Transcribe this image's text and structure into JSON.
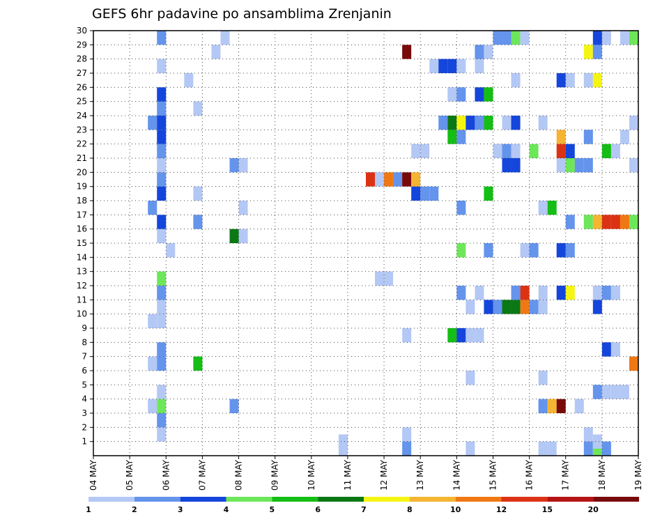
{
  "chart_data": {
    "type": "heatmap",
    "title": "GEFS 6hr padavine po ansamblima Zrenjanin",
    "xlabel": "",
    "ylabel": "",
    "x_ticks": [
      "04 MAY",
      "05 MAY",
      "06 MAY",
      "07 MAY",
      "08 MAY",
      "09 MAY",
      "10 MAY",
      "11 MAY",
      "12 MAY",
      "13 MAY",
      "14 MAY",
      "15 MAY",
      "16 MAY",
      "17 MAY",
      "18 MAY",
      "19 MAY"
    ],
    "y_ticks": [
      1,
      2,
      3,
      4,
      5,
      6,
      7,
      8,
      9,
      10,
      11,
      12,
      13,
      14,
      15,
      16,
      17,
      18,
      19,
      20,
      21,
      22,
      23,
      24,
      25,
      26,
      27,
      28,
      29,
      30
    ],
    "xlim_days": [
      0,
      15
    ],
    "ylim": [
      0,
      30
    ],
    "time_step_hours": 6,
    "grid": true,
    "color_levels": {
      "labels": [
        "1",
        "2",
        "3",
        "4",
        "5",
        "6",
        "7",
        "8",
        "10",
        "12",
        "15",
        "20"
      ],
      "colors": [
        "#b4c8f5",
        "#6494ec",
        "#1446dc",
        "#6ee65a",
        "#14be14",
        "#0a7814",
        "#f5f514",
        "#f5b432",
        "#f07814",
        "#dc3214",
        "#b41414",
        "#780a0a"
      ]
    },
    "cells": [
      [
        6.75,
        0,
        1
      ],
      [
        8.5,
        0,
        2
      ],
      [
        10.25,
        0,
        1
      ],
      [
        12.25,
        0,
        1
      ],
      [
        12.5,
        0,
        1
      ],
      [
        13.5,
        0,
        2
      ],
      [
        13.75,
        0,
        4
      ],
      [
        14.0,
        0,
        2
      ],
      [
        6.75,
        0.5,
        1
      ],
      [
        13.75,
        0.5,
        1
      ],
      [
        1.75,
        1,
        1
      ],
      [
        8.5,
        1,
        1
      ],
      [
        13.5,
        1,
        1
      ],
      [
        1.75,
        2,
        2
      ],
      [
        1.5,
        3,
        1
      ],
      [
        1.75,
        3,
        4
      ],
      [
        3.75,
        3,
        2
      ],
      [
        12.25,
        3,
        2
      ],
      [
        12.5,
        3,
        8
      ],
      [
        12.75,
        3,
        12
      ],
      [
        13.25,
        3,
        1
      ],
      [
        1.75,
        4,
        1
      ],
      [
        13.75,
        4,
        2
      ],
      [
        14.0,
        4,
        1
      ],
      [
        14.25,
        4,
        1
      ],
      [
        14.5,
        4,
        1
      ],
      [
        10.25,
        5,
        1
      ],
      [
        12.25,
        5,
        1
      ],
      [
        1.5,
        6,
        1
      ],
      [
        1.75,
        6,
        2
      ],
      [
        2.75,
        6,
        5
      ],
      [
        14.75,
        6,
        9
      ],
      [
        15.0,
        6,
        11
      ],
      [
        1.75,
        7,
        2
      ],
      [
        14.0,
        7,
        3
      ],
      [
        14.25,
        7,
        1
      ],
      [
        8.5,
        8,
        1
      ],
      [
        9.75,
        8,
        5
      ],
      [
        10.0,
        8,
        3
      ],
      [
        10.25,
        8,
        1
      ],
      [
        10.5,
        8,
        1
      ],
      [
        1.5,
        9,
        1
      ],
      [
        1.75,
        9,
        1
      ],
      [
        1.75,
        10,
        1
      ],
      [
        10.25,
        10,
        1
      ],
      [
        10.75,
        10,
        3
      ],
      [
        11.0,
        10,
        2
      ],
      [
        11.25,
        10,
        6
      ],
      [
        11.5,
        10,
        6
      ],
      [
        11.75,
        10,
        9
      ],
      [
        12.0,
        10,
        2
      ],
      [
        12.25,
        10,
        1
      ],
      [
        13.75,
        10,
        3
      ],
      [
        1.75,
        11,
        2
      ],
      [
        10.0,
        11,
        2
      ],
      [
        10.5,
        11,
        1
      ],
      [
        11.5,
        11,
        2
      ],
      [
        11.75,
        11,
        10
      ],
      [
        12.25,
        11,
        1
      ],
      [
        12.75,
        11,
        3
      ],
      [
        13.0,
        11,
        7
      ],
      [
        13.75,
        11,
        1
      ],
      [
        14.0,
        11,
        2
      ],
      [
        14.25,
        11,
        1
      ],
      [
        1.75,
        12,
        4
      ],
      [
        7.75,
        12,
        1
      ],
      [
        8.0,
        12,
        1
      ],
      [
        2.0,
        14,
        1
      ],
      [
        10.0,
        14,
        4
      ],
      [
        10.75,
        14,
        2
      ],
      [
        11.75,
        14,
        1
      ],
      [
        12.0,
        14,
        2
      ],
      [
        12.75,
        14,
        3
      ],
      [
        13.0,
        14,
        2
      ],
      [
        15.0,
        14,
        1
      ],
      [
        1.75,
        15,
        1
      ],
      [
        3.75,
        15,
        6
      ],
      [
        4.0,
        15,
        1
      ],
      [
        1.75,
        16,
        3
      ],
      [
        2.75,
        16,
        2
      ],
      [
        13.0,
        16,
        2
      ],
      [
        13.5,
        16,
        4
      ],
      [
        13.75,
        16,
        8
      ],
      [
        14.0,
        16,
        10
      ],
      [
        14.25,
        16,
        10
      ],
      [
        14.5,
        16,
        9
      ],
      [
        14.75,
        16,
        4
      ],
      [
        15.0,
        16,
        1
      ],
      [
        1.5,
        17,
        2
      ],
      [
        4.0,
        17,
        1
      ],
      [
        10.0,
        17,
        2
      ],
      [
        12.25,
        17,
        1
      ],
      [
        12.5,
        17,
        5
      ],
      [
        15.0,
        17,
        5
      ],
      [
        1.75,
        18,
        3
      ],
      [
        2.75,
        18,
        1
      ],
      [
        8.75,
        18,
        3
      ],
      [
        9.0,
        18,
        2
      ],
      [
        9.25,
        18,
        2
      ],
      [
        10.75,
        18,
        5
      ],
      [
        1.75,
        19,
        2
      ],
      [
        7.5,
        19,
        10
      ],
      [
        7.75,
        19,
        1
      ],
      [
        8.0,
        19,
        9
      ],
      [
        8.25,
        19,
        2
      ],
      [
        8.5,
        19,
        12
      ],
      [
        8.75,
        19,
        8
      ],
      [
        1.75,
        20,
        1
      ],
      [
        3.75,
        20,
        2
      ],
      [
        4.0,
        20,
        1
      ],
      [
        11.25,
        20,
        3
      ],
      [
        11.5,
        20,
        3
      ],
      [
        12.75,
        20,
        1
      ],
      [
        13.0,
        20,
        4
      ],
      [
        13.25,
        20,
        2
      ],
      [
        13.5,
        20,
        2
      ],
      [
        14.75,
        20,
        1
      ],
      [
        1.75,
        21,
        2
      ],
      [
        8.75,
        21,
        1
      ],
      [
        9.0,
        21,
        1
      ],
      [
        11.0,
        21,
        1
      ],
      [
        11.25,
        21,
        2
      ],
      [
        11.5,
        21,
        1
      ],
      [
        12.0,
        21,
        4
      ],
      [
        12.75,
        21,
        10
      ],
      [
        13.0,
        21,
        3
      ],
      [
        14.0,
        21,
        5
      ],
      [
        14.25,
        21,
        1
      ],
      [
        1.75,
        22,
        3
      ],
      [
        9.75,
        22,
        5
      ],
      [
        10.0,
        22,
        2
      ],
      [
        12.75,
        22,
        8
      ],
      [
        13.5,
        22,
        2
      ],
      [
        14.5,
        22,
        1
      ],
      [
        1.5,
        23,
        2
      ],
      [
        1.75,
        23,
        3
      ],
      [
        9.5,
        23,
        2
      ],
      [
        9.75,
        23,
        6
      ],
      [
        10.0,
        23,
        7
      ],
      [
        10.25,
        23,
        3
      ],
      [
        10.5,
        23,
        2
      ],
      [
        10.75,
        23,
        5
      ],
      [
        11.25,
        23,
        1
      ],
      [
        11.5,
        23,
        3
      ],
      [
        12.25,
        23,
        1
      ],
      [
        14.75,
        23,
        1
      ],
      [
        1.75,
        24,
        2
      ],
      [
        2.75,
        24,
        1
      ],
      [
        1.75,
        25,
        3
      ],
      [
        9.75,
        25,
        1
      ],
      [
        10.0,
        25,
        2
      ],
      [
        10.5,
        25,
        3
      ],
      [
        10.75,
        25,
        5
      ],
      [
        2.5,
        26,
        1
      ],
      [
        11.5,
        26,
        1
      ],
      [
        12.75,
        26,
        3
      ],
      [
        13.0,
        26,
        1
      ],
      [
        13.5,
        26,
        1
      ],
      [
        13.75,
        26,
        7
      ],
      [
        1.75,
        27,
        1
      ],
      [
        9.25,
        27,
        1
      ],
      [
        9.5,
        27,
        3
      ],
      [
        9.75,
        27,
        3
      ],
      [
        10.0,
        27,
        1
      ],
      [
        10.5,
        27,
        1
      ],
      [
        3.25,
        28,
        1
      ],
      [
        8.5,
        28,
        12
      ],
      [
        10.5,
        28,
        2
      ],
      [
        10.75,
        28,
        1
      ],
      [
        13.5,
        28,
        7
      ],
      [
        13.75,
        28,
        2
      ],
      [
        1.75,
        29,
        2
      ],
      [
        3.5,
        29,
        1
      ],
      [
        11.0,
        29,
        2
      ],
      [
        11.25,
        29,
        2
      ],
      [
        11.5,
        29,
        4
      ],
      [
        11.75,
        29,
        1
      ],
      [
        13.75,
        29,
        3
      ],
      [
        14.0,
        29,
        1
      ],
      [
        14.5,
        29,
        1
      ],
      [
        14.75,
        29,
        4
      ],
      [
        15.0,
        29,
        3
      ]
    ]
  }
}
